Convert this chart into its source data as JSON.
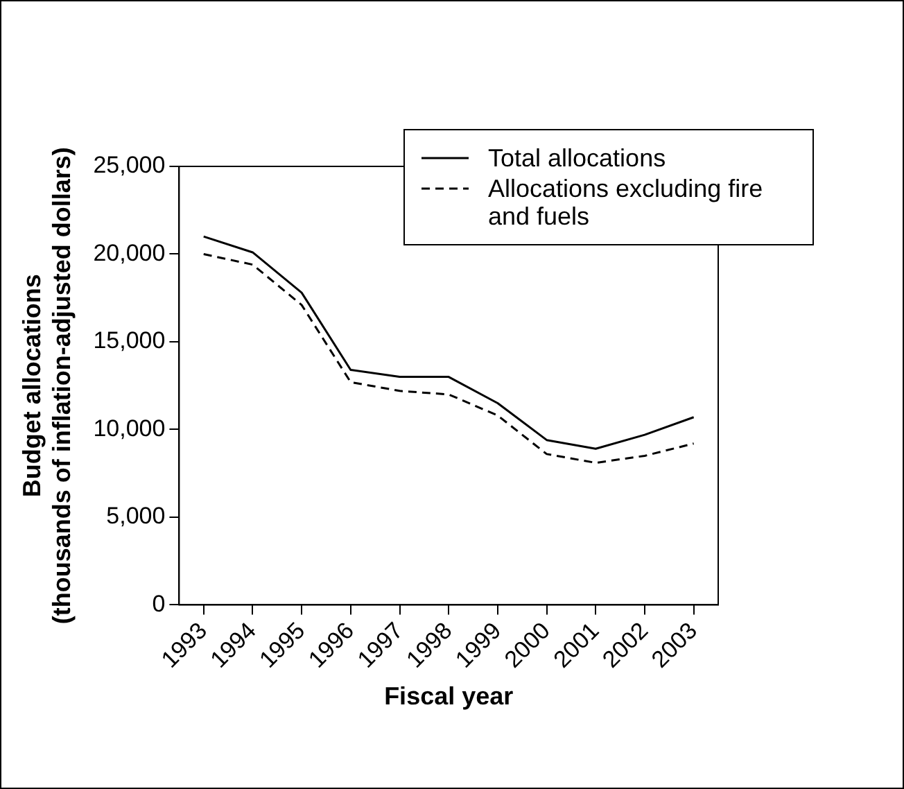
{
  "chart_data": {
    "type": "line",
    "xlabel": "Fiscal year",
    "ylabel": "Budget allocations\n(thousands of inflation-adjusted dollars)",
    "categories": [
      "1993",
      "1994",
      "1995",
      "1996",
      "1997",
      "1998",
      "1999",
      "2000",
      "2001",
      "2002",
      "2003"
    ],
    "series": [
      {
        "name": "Total allocations",
        "color": "#000000",
        "line_style": "solid",
        "values": [
          21000,
          20100,
          17800,
          13400,
          13000,
          13000,
          11500,
          9400,
          8900,
          9700,
          10700
        ]
      },
      {
        "name": "Allocations excluding fire and fuels",
        "color": "#000000",
        "line_style": "dashed",
        "values": [
          20000,
          19400,
          17100,
          12700,
          12200,
          12000,
          10800,
          8600,
          8100,
          8500,
          9200
        ]
      }
    ],
    "ylim": [
      0,
      25000
    ],
    "yticks": [
      0,
      {
        "value": 5000,
        "label": "5,000"
      },
      {
        "value": 10000,
        "label": "10,000"
      },
      {
        "value": 15000,
        "label": "15,000"
      },
      {
        "value": 20000,
        "label": "20,000"
      },
      {
        "value": 25000,
        "label": "25,000"
      }
    ],
    "grid": false,
    "legend": "top right",
    "marker": "none"
  }
}
